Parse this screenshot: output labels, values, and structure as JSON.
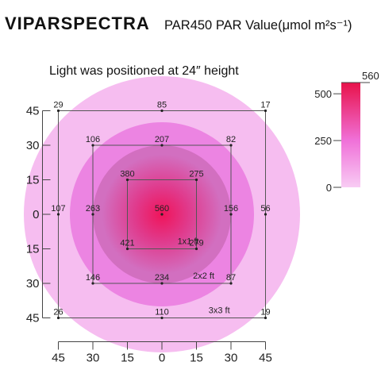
{
  "header": {
    "brand": "VIPARSPECTRA",
    "title": "PAR450 PAR Value(μmol m²s⁻¹)"
  },
  "chart_data": {
    "type": "heatmap",
    "annotation": "Light was positioned at 24″ height",
    "x_ticks": [
      "45",
      "30",
      "15",
      "0",
      "15",
      "30",
      "45"
    ],
    "y_ticks": [
      "45",
      "30",
      "15",
      "0",
      "15",
      "30",
      "45"
    ],
    "x_tick_positions": [
      -45,
      -30,
      -15,
      0,
      15,
      30,
      45
    ],
    "y_tick_positions": [
      45,
      30,
      15,
      0,
      -15,
      -30,
      -45
    ],
    "xlim": [
      -45,
      45
    ],
    "ylim": [
      -45,
      45
    ],
    "zones": [
      {
        "label": "1x1 ft",
        "half_size": 15,
        "color": "#3a3aa8"
      },
      {
        "label": "2x2 ft",
        "half_size": 30,
        "color": "#222222"
      },
      {
        "label": "3x3 ft",
        "half_size": 45,
        "color": "#222222"
      }
    ],
    "points": [
      {
        "x": -45,
        "y": 45,
        "value": 29
      },
      {
        "x": 0,
        "y": 45,
        "value": 85
      },
      {
        "x": 45,
        "y": 45,
        "value": 17
      },
      {
        "x": -30,
        "y": 30,
        "value": 106
      },
      {
        "x": 0,
        "y": 30,
        "value": 207
      },
      {
        "x": 30,
        "y": 30,
        "value": 82
      },
      {
        "x": -15,
        "y": 15,
        "value": 380
      },
      {
        "x": 15,
        "y": 15,
        "value": 275
      },
      {
        "x": -45,
        "y": 0,
        "value": 107
      },
      {
        "x": -30,
        "y": 0,
        "value": 263
      },
      {
        "x": 0,
        "y": 0,
        "value": 560
      },
      {
        "x": 30,
        "y": 0,
        "value": 156
      },
      {
        "x": 45,
        "y": 0,
        "value": 56
      },
      {
        "x": -15,
        "y": -15,
        "value": 421
      },
      {
        "x": 15,
        "y": -15,
        "value": 279
      },
      {
        "x": -30,
        "y": -30,
        "value": 146
      },
      {
        "x": 0,
        "y": -30,
        "value": 234
      },
      {
        "x": 30,
        "y": -30,
        "value": 87
      },
      {
        "x": -45,
        "y": -45,
        "value": 26
      },
      {
        "x": 0,
        "y": -45,
        "value": 110
      },
      {
        "x": 45,
        "y": -45,
        "value": 19
      }
    ],
    "contour_rings": [
      {
        "radius": 60,
        "color": "#f6bdf0"
      },
      {
        "radius": 40,
        "color": "#ec84e2"
      },
      {
        "radius": 30,
        "color": "#d26fc0"
      }
    ],
    "core_colors": [
      "#f0145a",
      "#e03a8c",
      "#d26fc0"
    ],
    "colorbar": {
      "ticks": [
        500,
        250,
        0
      ],
      "tick_labels": [
        "500",
        "250",
        "0"
      ],
      "max": 560,
      "max_label": "560",
      "colors": [
        "#e8124a",
        "#f070d8",
        "#f8ccf4"
      ]
    },
    "grid": false,
    "legend": "right"
  }
}
